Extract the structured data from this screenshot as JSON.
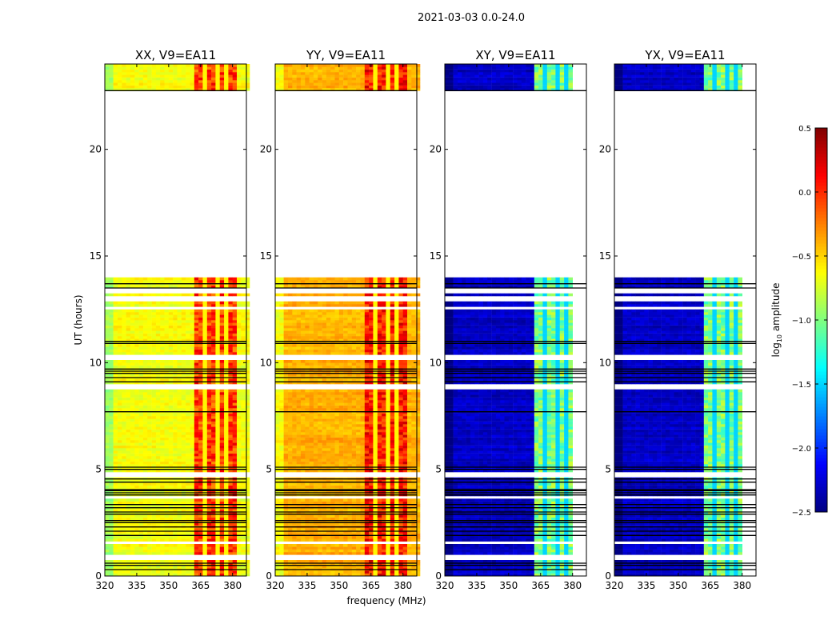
{
  "chart_data": {
    "type": "heatmap",
    "suptitle": "2021-03-03 0.0-24.0",
    "xlabel": "frequency (MHz)",
    "ylabel": "UT (hours)",
    "xlim": [
      320,
      386.5
    ],
    "ylim": [
      0,
      24
    ],
    "xticks": [
      "320",
      "335",
      "350",
      "365",
      "380"
    ],
    "yticks": [
      "0",
      "5",
      "10",
      "15",
      "20"
    ],
    "colormap": "jet",
    "colorbar": {
      "label": "log10 amplitude",
      "label_main": "log",
      "label_sub": "10",
      "label_rest": " amplitude",
      "range": [
        -2.5,
        0.5
      ],
      "ticks": [
        "0.5",
        "0.0",
        "−0.5",
        "−1.0",
        "−1.5",
        "−2.0",
        "−2.5"
      ]
    },
    "data_time_ranges_hours": [
      [
        0,
        14.0
      ],
      [
        22.75,
        24
      ]
    ],
    "flagged_rows_hours": [
      0.85,
      1.5,
      3.65,
      4.7,
      8.85,
      10.2,
      12.5,
      12.95,
      13.3
    ],
    "gridded_lines_hours": [
      0.3,
      0.5,
      0.6,
      1.9,
      2.1,
      2.3,
      2.5,
      2.6,
      2.9,
      3.0,
      3.2,
      3.35,
      3.8,
      3.9,
      4.0,
      4.05,
      4.4,
      4.55,
      5.0,
      5.1,
      7.7,
      9.1,
      9.3,
      9.5,
      9.6,
      9.7,
      10.9,
      11.0,
      13.5,
      13.7,
      22.75
    ],
    "band_channel_gaps_mhz": [
      367.5,
      372.5,
      377.5
    ],
    "panels": [
      {
        "title": "XX, V9=EA11",
        "low_band_log_amp": -0.65,
        "high_band_log_amp": -0.05,
        "high_band_mhz": [
          362,
          381
        ]
      },
      {
        "title": "YY, V9=EA11",
        "low_band_log_amp": -0.4,
        "high_band_log_amp": 0.05,
        "high_band_mhz": [
          362,
          381
        ]
      },
      {
        "title": "XY, V9=EA11",
        "low_band_log_amp": -2.3,
        "high_band_log_amp": -1.0,
        "high_band_mhz": [
          362,
          380
        ]
      },
      {
        "title": "YX, V9=EA11",
        "low_band_log_amp": -2.3,
        "high_band_log_amp": -1.0,
        "high_band_mhz": [
          362,
          380
        ]
      }
    ]
  }
}
